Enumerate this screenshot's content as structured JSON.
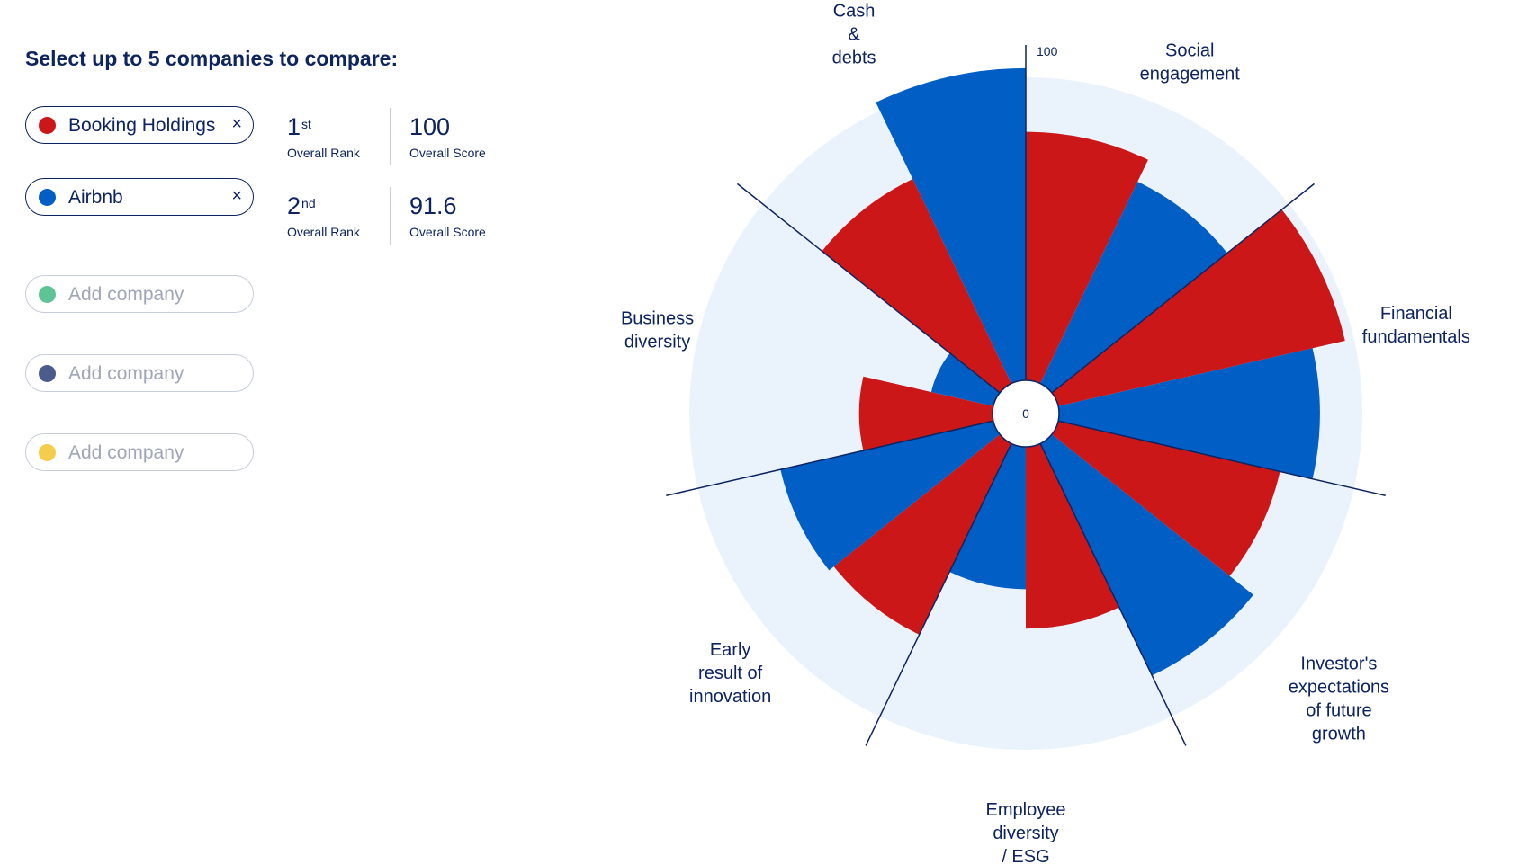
{
  "prompt": "Select up to 5 companies to compare:",
  "companies": [
    {
      "name": "Booking Holdings",
      "color": "#cc1719",
      "rank_num": "1",
      "rank_suffix": "st",
      "rank_label": "Overall Rank",
      "score": "100",
      "score_label": "Overall Score",
      "remove_label": "×"
    },
    {
      "name": "Airbnb",
      "color": "#005ec4",
      "rank_num": "2",
      "rank_suffix": "nd",
      "rank_label": "Overall Rank",
      "score": "91.6",
      "score_label": "Overall Score",
      "remove_label": "×"
    }
  ],
  "empty_slots": [
    {
      "placeholder": "Add company",
      "color": "#5ec496"
    },
    {
      "placeholder": "Add company",
      "color": "#4a5b8c"
    },
    {
      "placeholder": "Add company",
      "color": "#f5cc4b"
    }
  ],
  "chart_data": {
    "type": "polar-bar",
    "title": "",
    "rmin": 0,
    "rmax": 100,
    "rmin_label": "0",
    "rmax_label": "100",
    "background_color": "#eaf3fc",
    "axis_color": "#0d2461",
    "categories": [
      {
        "label": [
          "Social",
          "engagement"
        ]
      },
      {
        "label": [
          "Financial",
          "fundamentals"
        ]
      },
      {
        "label": [
          "Investor's",
          "expectations",
          "of future",
          "growth"
        ]
      },
      {
        "label": [
          "Employee",
          "diversity",
          "/ ESG"
        ]
      },
      {
        "label": [
          "Early",
          "result of",
          "innovation"
        ]
      },
      {
        "label": [
          "Business",
          "diversity"
        ]
      },
      {
        "label": [
          "Cash",
          "&",
          "debts"
        ]
      }
    ],
    "series": [
      {
        "name": "Booking Holdings",
        "color": "#cc1719",
        "values": [
          82,
          97,
          75,
          60,
          70,
          44,
          75
        ]
      },
      {
        "name": "Airbnb",
        "color": "#005ec4",
        "values": [
          74,
          86,
          85,
          47,
          72,
          21,
          103
        ]
      }
    ]
  }
}
